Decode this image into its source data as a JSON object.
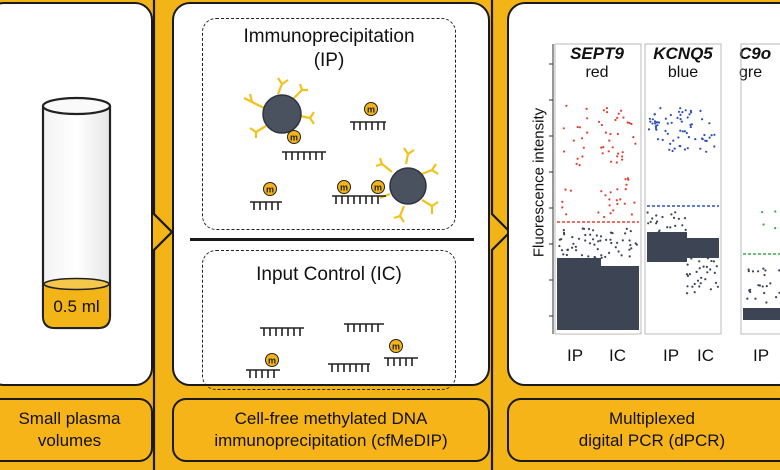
{
  "panel1": {
    "caption_line1": "Small plasma",
    "caption_line2": "volumes",
    "tube_label": "0.5 ml"
  },
  "panel2": {
    "ip_title_line1": "Immunoprecipitation",
    "ip_title_line2": "(IP)",
    "ic_title": "Input Control (IC)",
    "methyl_mark": "m",
    "caption_line1": "Cell-free methylated DNA",
    "caption_line2": "immunoprecipitation (cfMeDIP)"
  },
  "panel3": {
    "y_axis_label": "Fluorescence intensity",
    "caption_line1": "Multiplexed",
    "caption_line2": "digital PCR (dPCR)",
    "genes": [
      {
        "name": "SEPT9",
        "color_word": "red",
        "x1": "IP",
        "x2": "IC"
      },
      {
        "name": "KCNQ5",
        "color_word": "blue",
        "x1": "IP",
        "x2": "IC"
      },
      {
        "name": "C9o",
        "color_word": "gre",
        "x1": "IP",
        "x2": ""
      }
    ]
  },
  "colors": {
    "background": "#f3b418",
    "bead": "#4a5260",
    "antibody": "#f2c21a",
    "cluster": "#3d4454",
    "red": "#e04030",
    "blue": "#2b4fc0",
    "green": "#3aa845"
  }
}
